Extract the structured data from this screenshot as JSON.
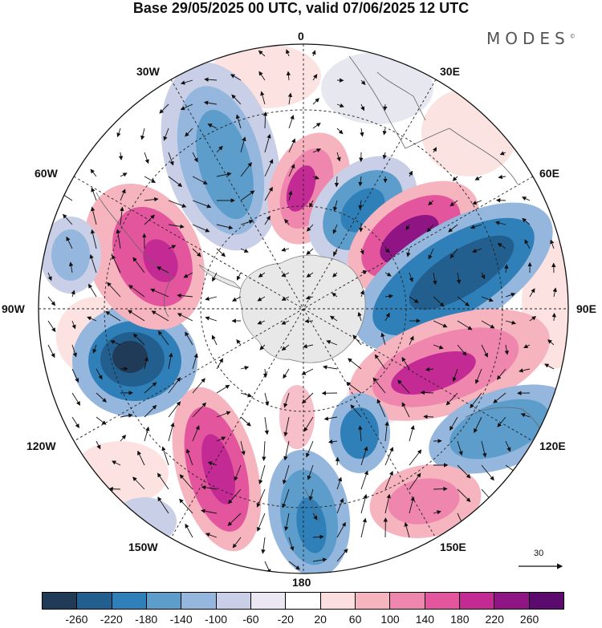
{
  "title": "Base 29/05/2025 00 UTC, valid 07/06/2025 12 UTC",
  "brand": "MODES",
  "brand_mark": "©",
  "longitude_labels": {
    "top": "0",
    "ne": "30E",
    "e60": "60E",
    "e90": "90E",
    "e120": "120E",
    "e150": "150E",
    "bottom": "180",
    "w150": "150W",
    "w120": "120W",
    "w90": "90W",
    "w60": "60W",
    "w30": "30W"
  },
  "reference_vector": {
    "label": "30"
  },
  "colorbar": {
    "colors": [
      "#1f3b57",
      "#235f8e",
      "#2f7fb8",
      "#5c9dcb",
      "#95b7dd",
      "#c8cfe6",
      "#ebe8f3",
      "#ffffff",
      "#fbdedd",
      "#f6b4bf",
      "#ef86ad",
      "#e3559d",
      "#c32a94",
      "#8f1585",
      "#5c0a6e"
    ],
    "ticks": [
      "-260",
      "-220",
      "-180",
      "-140",
      "-100",
      "-60",
      "-20",
      "20",
      "60",
      "100",
      "140",
      "180",
      "220",
      "260"
    ]
  },
  "map": {
    "anomaly_centers": [
      {
        "name": "blue-30w",
        "sign": "negative",
        "value": -150
      },
      {
        "name": "pink-10e",
        "sign": "positive",
        "value": 150
      },
      {
        "name": "blue-35e",
        "sign": "negative",
        "value": -160
      },
      {
        "name": "pink-55e",
        "sign": "positive",
        "value": 200
      },
      {
        "name": "blue-75e",
        "sign": "negative",
        "value": -200
      },
      {
        "name": "pink-100e",
        "sign": "positive",
        "value": 160
      },
      {
        "name": "blue-115e",
        "sign": "negative",
        "value": -140
      },
      {
        "name": "pink-140e",
        "sign": "positive",
        "value": 150
      },
      {
        "name": "blue-170e",
        "sign": "negative",
        "value": -160
      },
      {
        "name": "pink-155w",
        "sign": "positive",
        "value": 190
      },
      {
        "name": "blue-105w",
        "sign": "negative",
        "value": -240
      },
      {
        "name": "pink-75w",
        "sign": "positive",
        "value": 180
      },
      {
        "name": "blue-80w",
        "sign": "negative",
        "value": -100
      },
      {
        "name": "pink-140e-small",
        "sign": "positive",
        "value": 60
      },
      {
        "name": "blue-40w",
        "sign": "negative",
        "value": -60
      }
    ]
  }
}
